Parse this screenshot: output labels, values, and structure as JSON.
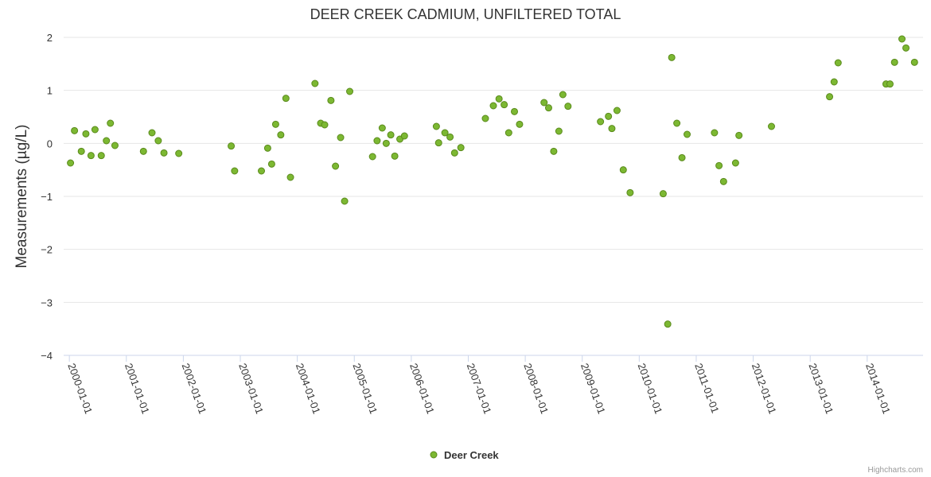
{
  "chart_data": {
    "type": "scatter",
    "title": "DEER CREEK CADMIUM, UNFILTERED TOTAL",
    "xlabel": "",
    "ylabel": "Measurements (µg/L)",
    "ylim": [
      -4,
      2
    ],
    "yticks": [
      "−4",
      "−3",
      "−2",
      "−1",
      "0",
      "1",
      "2"
    ],
    "xlim": [
      1999.9,
      2014.98
    ],
    "xticks": [
      {
        "value": 2000,
        "label": "2000-01-01"
      },
      {
        "value": 2001,
        "label": "2001-01-01"
      },
      {
        "value": 2002,
        "label": "2002-01-01"
      },
      {
        "value": 2003,
        "label": "2003-01-01"
      },
      {
        "value": 2004,
        "label": "2004-01-01"
      },
      {
        "value": 2005,
        "label": "2005-01-01"
      },
      {
        "value": 2006,
        "label": "2006-01-01"
      },
      {
        "value": 2007,
        "label": "2007-01-01"
      },
      {
        "value": 2008,
        "label": "2008-01-01"
      },
      {
        "value": 2009,
        "label": "2009-01-01"
      },
      {
        "value": 2010,
        "label": "2010-01-01"
      },
      {
        "value": 2011,
        "label": "2011-01-01"
      },
      {
        "value": 2012,
        "label": "2012-01-01"
      },
      {
        "value": 2013,
        "label": "2013-01-01"
      },
      {
        "value": 2014,
        "label": "2014-01-01"
      }
    ],
    "grid": true,
    "legend": "bottom-center",
    "series": [
      {
        "name": "Deer Creek",
        "color": "#7cb832",
        "points": [
          [
            2000.02,
            -0.37
          ],
          [
            2000.09,
            0.24
          ],
          [
            2000.21,
            -0.15
          ],
          [
            2000.29,
            0.18
          ],
          [
            2000.38,
            -0.23
          ],
          [
            2000.45,
            0.26
          ],
          [
            2000.56,
            -0.23
          ],
          [
            2000.65,
            0.05
          ],
          [
            2000.72,
            0.38
          ],
          [
            2000.8,
            -0.04
          ],
          [
            2001.3,
            -0.15
          ],
          [
            2001.45,
            0.2
          ],
          [
            2001.56,
            0.05
          ],
          [
            2001.66,
            -0.18
          ],
          [
            2001.92,
            -0.19
          ],
          [
            2002.84,
            -0.05
          ],
          [
            2002.9,
            -0.52
          ],
          [
            2003.37,
            -0.52
          ],
          [
            2003.48,
            -0.09
          ],
          [
            2003.55,
            -0.39
          ],
          [
            2003.62,
            0.36
          ],
          [
            2003.71,
            0.16
          ],
          [
            2003.8,
            0.85
          ],
          [
            2003.88,
            -0.64
          ],
          [
            2004.31,
            1.13
          ],
          [
            2004.41,
            0.38
          ],
          [
            2004.48,
            0.35
          ],
          [
            2004.59,
            0.81
          ],
          [
            2004.67,
            -0.43
          ],
          [
            2004.76,
            0.11
          ],
          [
            2004.83,
            -1.09
          ],
          [
            2004.92,
            0.98
          ],
          [
            2005.32,
            -0.25
          ],
          [
            2005.4,
            0.05
          ],
          [
            2005.49,
            0.29
          ],
          [
            2005.56,
            0.0
          ],
          [
            2005.64,
            0.16
          ],
          [
            2005.71,
            -0.24
          ],
          [
            2005.8,
            0.08
          ],
          [
            2005.88,
            0.14
          ],
          [
            2006.44,
            0.32
          ],
          [
            2006.48,
            0.01
          ],
          [
            2006.59,
            0.2
          ],
          [
            2006.68,
            0.12
          ],
          [
            2006.76,
            -0.18
          ],
          [
            2006.87,
            -0.08
          ],
          [
            2007.3,
            0.47
          ],
          [
            2007.44,
            0.71
          ],
          [
            2007.54,
            0.84
          ],
          [
            2007.63,
            0.73
          ],
          [
            2007.71,
            0.2
          ],
          [
            2007.81,
            0.6
          ],
          [
            2007.9,
            0.36
          ],
          [
            2008.33,
            0.77
          ],
          [
            2008.41,
            0.67
          ],
          [
            2008.5,
            -0.15
          ],
          [
            2008.59,
            0.23
          ],
          [
            2008.66,
            0.92
          ],
          [
            2008.75,
            0.7
          ],
          [
            2009.32,
            0.41
          ],
          [
            2009.46,
            0.51
          ],
          [
            2009.52,
            0.28
          ],
          [
            2009.61,
            0.62
          ],
          [
            2009.72,
            -0.5
          ],
          [
            2009.84,
            -0.93
          ],
          [
            2010.42,
            -0.95
          ],
          [
            2010.5,
            -3.41
          ],
          [
            2010.57,
            1.62
          ],
          [
            2010.66,
            0.38
          ],
          [
            2010.75,
            -0.27
          ],
          [
            2010.84,
            0.17
          ],
          [
            2011.32,
            0.2
          ],
          [
            2011.4,
            -0.42
          ],
          [
            2011.48,
            -0.72
          ],
          [
            2011.69,
            -0.37
          ],
          [
            2011.75,
            0.15
          ],
          [
            2012.32,
            0.32
          ],
          [
            2013.34,
            0.88
          ],
          [
            2013.42,
            1.16
          ],
          [
            2013.49,
            1.52
          ],
          [
            2014.33,
            1.12
          ],
          [
            2014.4,
            1.12
          ],
          [
            2014.48,
            1.53
          ],
          [
            2014.61,
            1.97
          ],
          [
            2014.68,
            1.8
          ],
          [
            2014.83,
            1.53
          ]
        ]
      }
    ]
  },
  "legend": {
    "label": "Deer Creek"
  },
  "credits": "Highcharts.com"
}
